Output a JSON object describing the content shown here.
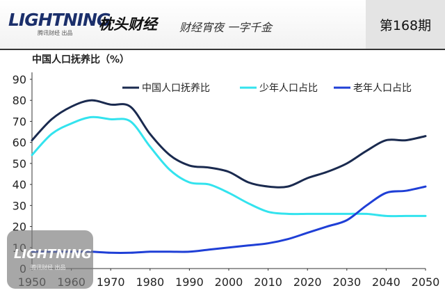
{
  "header": {
    "logo_text": "LIGHTNING",
    "logo_sub": "腾讯财经 出品",
    "brand_separator": "·",
    "brand_name": "枕头财经",
    "tagline": "财经宵夜 一字千金",
    "issue": "第168期"
  },
  "watermark": {
    "logo_text": "LIGHTNING",
    "sub": "腾讯财经 出品"
  },
  "colors": {
    "dependency_ratio": "#1a2a4f",
    "youth_share": "#33e3ee",
    "elderly_share": "#1f3fd6"
  },
  "chart_data": {
    "type": "line",
    "title": "中国人口抚养比（%）",
    "xlabel": "",
    "ylabel": "",
    "xlim": [
      1950,
      2050
    ],
    "ylim": [
      0,
      90
    ],
    "xticks": [
      1950,
      1960,
      1970,
      1980,
      1990,
      2000,
      2010,
      2020,
      2030,
      2040,
      2050
    ],
    "yticks": [
      0,
      10,
      20,
      30,
      40,
      50,
      60,
      70,
      80,
      90
    ],
    "legend_position": "top",
    "grid": false,
    "series": [
      {
        "name": "中国人口抚养比",
        "x": [
          1950,
          1955,
          1960,
          1965,
          1970,
          1975,
          1980,
          1985,
          1990,
          1995,
          2000,
          2005,
          2010,
          2015,
          2020,
          2025,
          2030,
          2035,
          2040,
          2045,
          2050
        ],
        "y": [
          61,
          71,
          77,
          80,
          78,
          77,
          64,
          54,
          49,
          48,
          46,
          41,
          39,
          39,
          43,
          46,
          50,
          56,
          61,
          61,
          63
        ]
      },
      {
        "name": "少年人口占比",
        "x": [
          1950,
          1955,
          1960,
          1965,
          1970,
          1975,
          1980,
          1985,
          1990,
          1995,
          2000,
          2005,
          2010,
          2015,
          2020,
          2025,
          2030,
          2035,
          2040,
          2045,
          2050
        ],
        "y": [
          54,
          64,
          69,
          72,
          71,
          70,
          58,
          47,
          41,
          40,
          36,
          31,
          27,
          26,
          26,
          26,
          26,
          26,
          25,
          25,
          25
        ]
      },
      {
        "name": "老年人口占比",
        "x": [
          1950,
          1955,
          1960,
          1965,
          1970,
          1975,
          1980,
          1985,
          1990,
          1995,
          2000,
          2005,
          2010,
          2015,
          2020,
          2025,
          2030,
          2035,
          2040,
          2045,
          2050
        ],
        "y": [
          8,
          8,
          8,
          8,
          7.5,
          7.5,
          8,
          8,
          8,
          9,
          10,
          11,
          12,
          14,
          17,
          20,
          23,
          30,
          36,
          37,
          39
        ]
      }
    ]
  }
}
